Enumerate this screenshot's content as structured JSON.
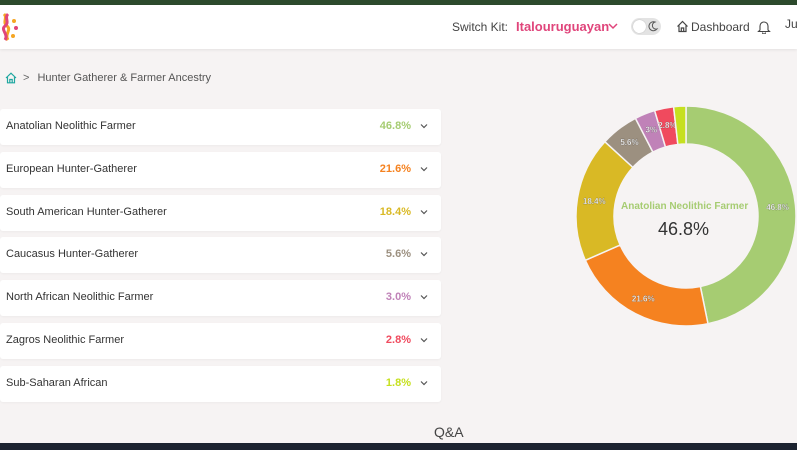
{
  "header": {
    "switch_label": "Switch Kit:",
    "kit_name": "Italouruguayan",
    "dashboard_label": "Dashboard",
    "user_initials": "Ju"
  },
  "breadcrumb": {
    "page": "Hunter Gatherer & Farmer Ancestry"
  },
  "ancestry": [
    {
      "name": "Anatolian Neolithic Farmer",
      "percent_label": "46.8%",
      "value": 46.8,
      "color": "#a6cc72"
    },
    {
      "name": "European Hunter-Gatherer",
      "percent_label": "21.6%",
      "value": 21.6,
      "color": "#f58220"
    },
    {
      "name": "South American Hunter-Gatherer",
      "percent_label": "18.4%",
      "value": 18.4,
      "color": "#d9b925"
    },
    {
      "name": "Caucasus Hunter-Gatherer",
      "percent_label": "5.6%",
      "value": 5.6,
      "color": "#9c9080"
    },
    {
      "name": "North African Neolithic Farmer",
      "percent_label": "3.0%",
      "value": 3.0,
      "color": "#c082b8"
    },
    {
      "name": "Zagros Neolithic Farmer",
      "percent_label": "2.8%",
      "value": 2.8,
      "color": "#f04a5e"
    },
    {
      "name": "Sub-Saharan African",
      "percent_label": "1.8%",
      "value": 1.8,
      "color": "#c6e01f"
    }
  ],
  "donut": {
    "center_name": "Anatolian Neolithic Farmer",
    "center_value": "46.8%",
    "slice_labels": [
      "46.8%",
      "21.6%",
      "18.4%",
      "5.6%",
      "3%",
      "2.8%",
      ""
    ]
  },
  "footer": {
    "qa_label": "Q&A"
  },
  "colors": {
    "accent": "#e0457b",
    "top_strip": "#2c4a2c"
  }
}
